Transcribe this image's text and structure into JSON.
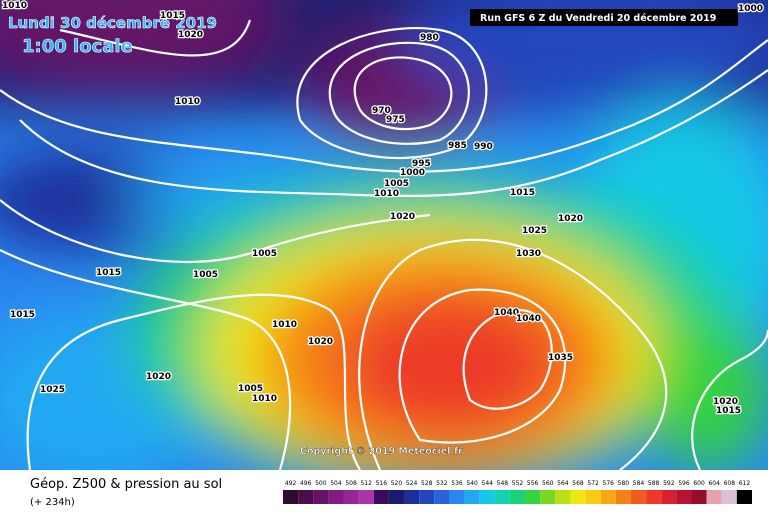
{
  "header": {
    "date": "Lundi 30 décembre 2019",
    "time": "1:00 locale",
    "run": "Run GFS 6 Z du Vendredi 20 décembre 2019"
  },
  "copyright": "Copyright © 2019 Meteociel.fr",
  "footer": {
    "title": "Géop. Z500 & pression au sol",
    "lead": "(+ 234h)"
  },
  "isobar_labels": [
    1010,
    1015,
    1020,
    980,
    970,
    975,
    985,
    990,
    995,
    1000,
    1005,
    1010,
    1010,
    1015,
    1020,
    1020,
    1025,
    1030,
    1005,
    1005,
    1015,
    1015,
    1010,
    1020,
    1040,
    1040,
    1035,
    1025,
    1020,
    1005,
    1010,
    1020,
    1015,
    1000
  ],
  "legend": [
    {
      "value": 492,
      "color": "#2e0a2e"
    },
    {
      "value": 496,
      "color": "#4a0e4a"
    },
    {
      "value": 500,
      "color": "#661466"
    },
    {
      "value": 504,
      "color": "#801c80"
    },
    {
      "value": 508,
      "color": "#962696"
    },
    {
      "value": 512,
      "color": "#ab33ab"
    },
    {
      "value": 516,
      "color": "#3c0a5a"
    },
    {
      "value": 520,
      "color": "#1a1a6e"
    },
    {
      "value": 524,
      "color": "#1c2e9a"
    },
    {
      "value": 528,
      "color": "#2246c0"
    },
    {
      "value": 532,
      "color": "#2a62dc"
    },
    {
      "value": 536,
      "color": "#2a86f0"
    },
    {
      "value": 540,
      "color": "#22a8f2"
    },
    {
      "value": 544,
      "color": "#14c8e8"
    },
    {
      "value": 548,
      "color": "#10d4b0"
    },
    {
      "value": 552,
      "color": "#1ad27a"
    },
    {
      "value": 556,
      "color": "#36d240"
    },
    {
      "value": 560,
      "color": "#7cd81e"
    },
    {
      "value": 564,
      "color": "#bce014"
    },
    {
      "value": 568,
      "color": "#eee810"
    },
    {
      "value": 572,
      "color": "#f8cc10"
    },
    {
      "value": 576,
      "color": "#f8a612"
    },
    {
      "value": 580,
      "color": "#f68016"
    },
    {
      "value": 584,
      "color": "#f25a1e"
    },
    {
      "value": 588,
      "color": "#ec3a28"
    },
    {
      "value": 592,
      "color": "#d82030"
    },
    {
      "value": 596,
      "color": "#b81432"
    },
    {
      "value": 600,
      "color": "#940e2c"
    },
    {
      "value": 604,
      "color": "#e8a0b0"
    },
    {
      "value": 608,
      "color": "#d8c0d8"
    },
    {
      "value": 612,
      "color": "#000000"
    }
  ]
}
